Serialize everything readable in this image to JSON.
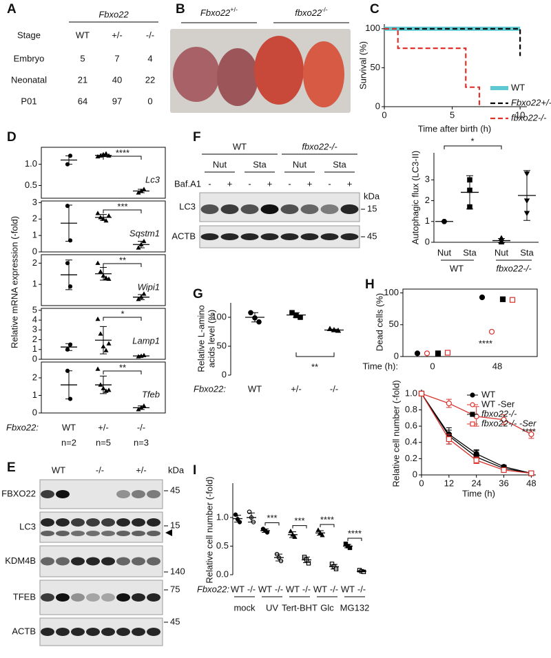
{
  "panels": {
    "A": {
      "letter": "A",
      "gene": "Fbxo22",
      "columns": [
        "Stage",
        "WT",
        "+/-",
        "-/-"
      ],
      "rows": [
        [
          "Embryo",
          5,
          7,
          4
        ],
        [
          "Neonatal",
          21,
          40,
          22
        ],
        [
          "P01",
          64,
          97,
          0
        ]
      ]
    },
    "B": {
      "letter": "B",
      "labels": [
        {
          "gene": "Fbxo22",
          "genotype": "+/-"
        },
        {
          "gene": "fbxo22",
          "genotype": "-/-"
        }
      ]
    },
    "C": {
      "letter": "C",
      "chart_data": {
        "type": "line",
        "y_label": "Survival (%)",
        "x_label": "Time after birth (h)",
        "xlim": [
          0,
          10.5
        ],
        "xticks": [
          0,
          5,
          10
        ],
        "ylim": [
          0,
          106
        ],
        "yticks": [
          0,
          50,
          100
        ],
        "legend": "lower right",
        "series": [
          {
            "name": "WT",
            "color": "#5ec8d3",
            "dashed": false,
            "x": [
              0,
              10
            ],
            "values": [
              100,
              100
            ]
          },
          {
            "name": "Fbxo22+/-",
            "color": "#000000",
            "dashed": true,
            "x": [
              0,
              10,
              10
            ],
            "values": [
              100,
              100,
              65
            ]
          },
          {
            "name": "fbxo22-/-",
            "color": "#e0302a",
            "dashed": true,
            "x": [
              0,
              1,
              1,
              6,
              6,
              7,
              7
            ],
            "values": [
              100,
              100,
              75,
              75,
              25,
              25,
              0
            ]
          }
        ]
      }
    },
    "D": {
      "letter": "D",
      "y_label": "Relative mRNA expression (-fold)",
      "group_label": "Fbxo22:",
      "categories": [
        "WT",
        "+/-",
        "-/-"
      ],
      "n_labels": [
        "n=2",
        "n=5",
        "n=3"
      ],
      "genes": [
        {
          "name": "Lc3",
          "ylim": [
            0.2,
            1.4
          ],
          "yticks": [
            0.5,
            {
              "value": 1,
              "label": "1.0"
            }
          ],
          "significance": "****",
          "groups": [
            {
              "points": [
                1.0,
                1.2
              ],
              "mean": 1.1,
              "sd": 0.1
            },
            {
              "points": [
                1.18,
                1.2,
                1.23,
                1.25,
                1.2
              ],
              "mean": 1.21,
              "sd": 0.03
            },
            {
              "points": [
                0.33,
                0.37,
                0.41
              ],
              "mean": 0.37,
              "sd": 0.04
            }
          ]
        },
        {
          "name": "Sqstm1",
          "ylim": [
            0,
            3.1
          ],
          "yticks": [
            0,
            1,
            2,
            3
          ],
          "significance": "***",
          "groups": [
            {
              "points": [
                2.8,
                0.7
              ],
              "mean": 1.75,
              "sd": 1.1
            },
            {
              "points": [
                2.35,
                2.1,
                2.0,
                1.9,
                2.2
              ],
              "mean": 2.1,
              "sd": 0.18
            },
            {
              "points": [
                0.25,
                0.45,
                0.65
              ],
              "mean": 0.45,
              "sd": 0.2
            }
          ]
        },
        {
          "name": "Wipi1",
          "ylim": [
            0,
            2.4
          ],
          "yticks": [
            1,
            2
          ],
          "significance": "**",
          "groups": [
            {
              "points": [
                2.0,
                0.9
              ],
              "mean": 1.45,
              "sd": 0.7
            },
            {
              "points": [
                2.0,
                1.6,
                1.4,
                1.3,
                1.25
              ],
              "mean": 1.5,
              "sd": 0.3
            },
            {
              "points": [
                0.3,
                0.4,
                0.55
              ],
              "mean": 0.4,
              "sd": 0.12
            }
          ]
        },
        {
          "name": "Lamp1",
          "ylim": [
            0,
            5.2
          ],
          "yticks": [
            0,
            1,
            2,
            3,
            4,
            5
          ],
          "significance": "*",
          "groups": [
            {
              "points": [
                1.0,
                1.5
              ],
              "mean": 1.25,
              "sd": 0.35
            },
            {
              "points": [
                4.1,
                2.6,
                1.3,
                0.9,
                1.6
              ],
              "mean": 1.95,
              "sd": 1.4
            },
            {
              "points": [
                0.28,
                0.33,
                0.4
              ],
              "mean": 0.34,
              "sd": 0.05
            }
          ]
        },
        {
          "name": "Tfeb",
          "ylim": [
            0,
            2.9
          ],
          "yticks": [
            0,
            1,
            2
          ],
          "significance": "**",
          "groups": [
            {
              "points": [
                2.4,
                0.8
              ],
              "mean": 1.6,
              "sd": 0.8
            },
            {
              "points": [
                2.5,
                1.6,
                1.4,
                1.25,
                1.3
              ],
              "mean": 1.6,
              "sd": 0.5
            },
            {
              "points": [
                0.2,
                0.3,
                0.4
              ],
              "mean": 0.3,
              "sd": 0.1
            }
          ]
        }
      ]
    },
    "E": {
      "letter": "E",
      "columns": [
        "WT",
        "-/-",
        "+/-"
      ],
      "unit": "kDa",
      "rows": [
        {
          "protein": "FBXO22",
          "marker": 45
        },
        {
          "protein": "LC3",
          "marker": 15
        },
        {
          "protein": "KDM4B",
          "marker": 140
        },
        {
          "protein": "TFEB",
          "marker": 75
        },
        {
          "protein": "ACTB",
          "marker": 45
        }
      ]
    },
    "F": {
      "letter": "F",
      "blot": {
        "groups": [
          "WT",
          "fbxo22-/-"
        ],
        "conditions": [
          "Nut",
          "Sta",
          "Nut",
          "Sta"
        ],
        "treatment": "Baf.A1",
        "signs": [
          "-",
          "+",
          "-",
          "+",
          "-",
          "+",
          "-",
          "+"
        ],
        "unit": "kDa",
        "rows": [
          {
            "protein": "LC3",
            "marker": 15
          },
          {
            "protein": "ACTB",
            "marker": 45
          }
        ]
      },
      "chart": {
        "y_label": "Autophagic flux (LC3-II)",
        "ylim": [
          0,
          4.3
        ],
        "yticks": [
          0,
          1,
          2,
          3
        ],
        "categories": [
          "Nut",
          "Sta",
          "Nut",
          "Sta"
        ],
        "groups": [
          "WT",
          "fbxo22-/-"
        ],
        "significance": "*",
        "data": [
          {
            "points": [
              1,
              1,
              1
            ],
            "mean": 1,
            "sd": 0
          },
          {
            "points": [
              3.0,
              2.5,
              1.7
            ],
            "mean": 2.4,
            "sd": 0.8
          },
          {
            "points": [
              0.2,
              0.05,
              0
            ],
            "mean": 0.08,
            "sd": 0.1
          },
          {
            "points": [
              3.3,
              2.0,
              1.4
            ],
            "mean": 2.25,
            "sd": 1.2
          }
        ]
      }
    },
    "G": {
      "letter": "G",
      "y_label": [
        "Relative L-amino",
        "acids level (%)"
      ],
      "ylim": [
        0,
        125
      ],
      "yticks": [
        0,
        50,
        100
      ],
      "group_label": "Fbxo22:",
      "categories": [
        "WT",
        "+/-",
        "-/-"
      ],
      "significance": "**",
      "data": [
        {
          "points": [
            108,
            99,
            92
          ],
          "mean": 100,
          "sd": 8
        },
        {
          "points": [
            108,
            103,
            100
          ],
          "mean": 104,
          "sd": 4
        },
        {
          "points": [
            80,
            78,
            77
          ],
          "mean": 78,
          "sd": 1.5
        }
      ]
    },
    "H": {
      "letter": "H",
      "dead": {
        "y_label": "Dead cells (%)",
        "ylim": [
          0,
          106
        ],
        "yticks": [
          0,
          50,
          100
        ],
        "time_label": "Time (h):",
        "categories": [
          "0",
          "48"
        ],
        "significance": "****",
        "series": [
          {
            "color": "#000000",
            "marker": "circle",
            "filled": true,
            "values": [
              5,
              93
            ]
          },
          {
            "color": "#d9302a",
            "marker": "circle",
            "filled": false,
            "values": [
              5,
              39
            ]
          },
          {
            "color": "#000000",
            "marker": "square",
            "filled": true,
            "values": [
              5,
              90
            ]
          },
          {
            "color": "#d9302a",
            "marker": "square",
            "filled": false,
            "values": [
              6,
              89
            ]
          }
        ]
      },
      "growth": {
        "type": "line",
        "y_label": "Relative cell number (-fold)",
        "x_label": "Time (h)",
        "xlim": [
          0,
          50
        ],
        "xticks": [
          0,
          12,
          24,
          36,
          48
        ],
        "ylim": [
          0,
          1.05
        ],
        "yticks": [
          0,
          0.2,
          0.4,
          0.6,
          0.8,
          {
            "value": 1,
            "label": "1.0"
          }
        ],
        "significance": "****",
        "series": [
          {
            "name": "WT",
            "color": "#000000",
            "marker": "circle",
            "filled": true,
            "values": [
              1,
              0.5,
              0.26,
              0.1,
              0.02
            ],
            "errors": [
              0,
              0.05,
              0.05,
              0.02,
              0.01
            ]
          },
          {
            "name": "WT -Ser",
            "color": "#d9302a",
            "marker": "circle",
            "filled": false,
            "values": [
              1,
              0.88,
              0.72,
              0.68,
              0.5
            ],
            "errors": [
              0,
              0.05,
              0.12,
              0.06,
              0.05
            ]
          },
          {
            "name": "fbxo22-/-",
            "color": "#000000",
            "marker": "square",
            "filled": true,
            "values": [
              1,
              0.48,
              0.22,
              0.08,
              0.02
            ],
            "errors": [
              0,
              0.1,
              0.08,
              0.04,
              0.01
            ]
          },
          {
            "name": "fbxo22-/- -Ser",
            "color": "#d9302a",
            "marker": "square",
            "filled": false,
            "values": [
              1,
              0.44,
              0.18,
              0.06,
              0.02
            ],
            "errors": [
              0,
              0.06,
              0.04,
              0.02,
              0.01
            ]
          }
        ]
      }
    },
    "I": {
      "letter": "I",
      "y_label": "Relative cell number (-fold)",
      "ylim": [
        0,
        1.6
      ],
      "yticks": [
        {
          "value": 0,
          "label": "0.0"
        },
        0.5,
        {
          "value": 1,
          "label": "1.0"
        }
      ],
      "group_label": "Fbxo22:",
      "genotypes": [
        "WT",
        "-/-"
      ],
      "treatments": [
        {
          "name": "mock",
          "groups": [
            {
              "points": [
                1.05,
                0.97,
                0.92
              ],
              "mean": 0.98,
              "sd": 0.06
            },
            {
              "points": [
                1.1,
                1.0,
                0.92
              ],
              "mean": 1.0,
              "sd": 0.08
            }
          ]
        },
        {
          "name": "UV",
          "significance": "***",
          "groups": [
            {
              "points": [
                0.8,
                0.77,
                0.74
              ],
              "mean": 0.77,
              "sd": 0.03
            },
            {
              "points": [
                0.36,
                0.3,
                0.24
              ],
              "mean": 0.3,
              "sd": 0.06
            }
          ]
        },
        {
          "name": "Tert-BHT",
          "significance": "***",
          "groups": [
            {
              "points": [
                0.76,
                0.7,
                0.66
              ],
              "mean": 0.7,
              "sd": 0.05
            },
            {
              "points": [
                0.31,
                0.26,
                0.2
              ],
              "mean": 0.26,
              "sd": 0.05
            }
          ]
        },
        {
          "name": "Glc",
          "significance": "****",
          "groups": [
            {
              "points": [
                0.78,
                0.73,
                0.69
              ],
              "mean": 0.73,
              "sd": 0.04
            },
            {
              "points": [
                0.19,
                0.14,
                0.1
              ],
              "mean": 0.14,
              "sd": 0.04
            }
          ]
        },
        {
          "name": "MG132",
          "significance": "****",
          "groups": [
            {
              "points": [
                0.54,
                0.5,
                0.47
              ],
              "mean": 0.5,
              "sd": 0.03
            },
            {
              "points": [
                0.08,
                0.06,
                0.05
              ],
              "mean": 0.06,
              "sd": 0.01
            }
          ]
        }
      ]
    }
  }
}
